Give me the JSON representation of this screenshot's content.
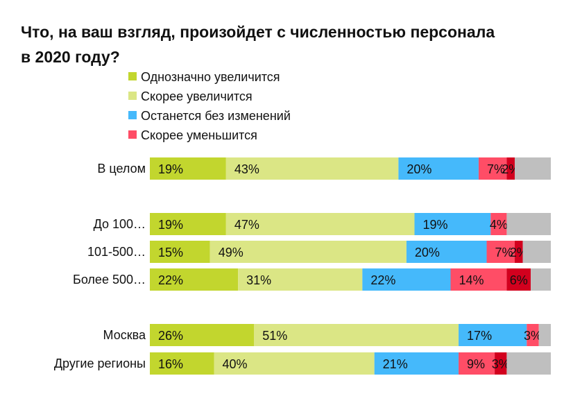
{
  "chart_data": {
    "type": "bar",
    "orientation": "horizontal",
    "stacked": true,
    "title": "Что, на ваш взгляд, произойдет с численностью персонала в 2020 году?",
    "categories": [
      "В целом",
      "До 100…",
      "101-500…",
      "Более 500…",
      "Москва",
      "Другие регионы"
    ],
    "groups": [
      [
        0
      ],
      [
        1,
        2,
        3
      ],
      [
        4,
        5
      ]
    ],
    "series": [
      {
        "name": "Однозначно увеличится",
        "color": "#c2d62e",
        "values": [
          19,
          19,
          15,
          22,
          26,
          16
        ]
      },
      {
        "name": "Скорее увеличится",
        "color": "#dbe685",
        "values": [
          43,
          47,
          49,
          31,
          51,
          40
        ]
      },
      {
        "name": "Останется без изменений",
        "color": "#45b9fb",
        "values": [
          20,
          19,
          20,
          22,
          17,
          21
        ]
      },
      {
        "name": "Скорее уменьшится",
        "color": "#ff4d66",
        "values": [
          7,
          4,
          7,
          14,
          3,
          9
        ]
      },
      {
        "name": null,
        "color": "#d2001e",
        "values": [
          2,
          0,
          2,
          6,
          0,
          3
        ]
      },
      {
        "name": null,
        "color": "#bfbfbf",
        "values": [
          9,
          11,
          7,
          5,
          3,
          11
        ],
        "labeled": false
      }
    ],
    "value_suffix": "%",
    "legend_position": "top",
    "xlim": [
      0,
      100
    ]
  }
}
